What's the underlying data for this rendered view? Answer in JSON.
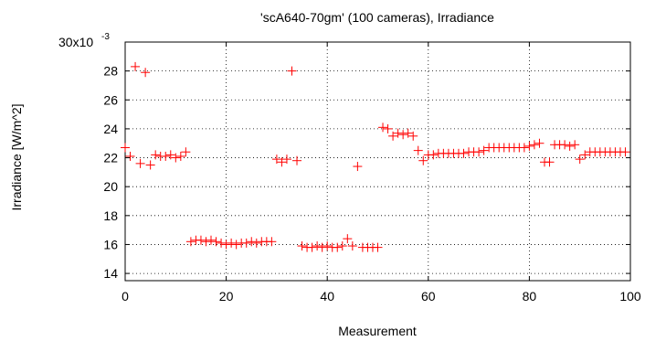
{
  "chart_data": {
    "type": "scatter",
    "title": "'scA640-70gm' (100 cameras), Irradiance",
    "xlabel": "Measurement",
    "ylabel": "Irradiance [W/m^2]",
    "y_scale_label": "30x10",
    "y_scale_exponent": "-3",
    "xlim": [
      0,
      100
    ],
    "ylim": [
      0.0135,
      0.03
    ],
    "x_ticks": [
      0,
      20,
      40,
      60,
      80,
      100
    ],
    "x_tick_labels": [
      "0",
      "20",
      "40",
      "60",
      "80",
      "100"
    ],
    "y_ticks": [
      0.014,
      0.016,
      0.018,
      0.02,
      0.022,
      0.024,
      0.026,
      0.028
    ],
    "y_tick_labels": [
      "14",
      "16",
      "18",
      "20",
      "22",
      "24",
      "26",
      "28"
    ],
    "grid": true,
    "marker": "+",
    "marker_color": "#ff0000",
    "series": [
      {
        "x": [
          0,
          1,
          2,
          3,
          4,
          5,
          6,
          7,
          8,
          9,
          10,
          11,
          12,
          13,
          14,
          15,
          16,
          17,
          18,
          19,
          20,
          21,
          22,
          23,
          24,
          25,
          26,
          27,
          28,
          29,
          30,
          31,
          32,
          33,
          34,
          35,
          36,
          37,
          38,
          39,
          40,
          41,
          42,
          43,
          44,
          45,
          46,
          47,
          48,
          49,
          50,
          51,
          52,
          53,
          54,
          55,
          56,
          57,
          58,
          59,
          60,
          61,
          62,
          63,
          64,
          65,
          66,
          67,
          68,
          69,
          70,
          71,
          72,
          73,
          74,
          75,
          76,
          77,
          78,
          79,
          80,
          81,
          82,
          83,
          84,
          85,
          86,
          87,
          88,
          89,
          90,
          91,
          92,
          93,
          94,
          95,
          96,
          97,
          98,
          99
        ],
        "y": [
          0.0227,
          0.0221,
          0.0283,
          0.0216,
          0.0279,
          0.0215,
          0.0222,
          0.0221,
          0.0221,
          0.0222,
          0.022,
          0.0221,
          0.0224,
          0.0162,
          0.0163,
          0.0163,
          0.0162,
          0.0163,
          0.0162,
          0.0161,
          0.016,
          0.0161,
          0.016,
          0.0161,
          0.0161,
          0.0162,
          0.0161,
          0.0162,
          0.0162,
          0.0162,
          0.0219,
          0.0217,
          0.0219,
          0.028,
          0.0218,
          0.0159,
          0.0158,
          0.0158,
          0.0159,
          0.0158,
          0.0159,
          0.0158,
          0.0158,
          0.0159,
          0.0164,
          0.0159,
          0.0214,
          0.0158,
          0.0158,
          0.0158,
          0.0158,
          0.0241,
          0.024,
          0.0235,
          0.0237,
          0.0236,
          0.0237,
          0.0235,
          0.0225,
          0.0218,
          0.0222,
          0.0222,
          0.0223,
          0.0223,
          0.0223,
          0.0223,
          0.0223,
          0.0223,
          0.0224,
          0.0224,
          0.0224,
          0.0225,
          0.0227,
          0.0227,
          0.0227,
          0.0227,
          0.0227,
          0.0227,
          0.0227,
          0.0227,
          0.0228,
          0.0229,
          0.023,
          0.0217,
          0.0217,
          0.0229,
          0.0229,
          0.0229,
          0.0228,
          0.0229,
          0.0219,
          0.0222,
          0.0224,
          0.0224,
          0.0224,
          0.0224,
          0.0224,
          0.0224,
          0.0224,
          0.0224
        ]
      }
    ]
  }
}
